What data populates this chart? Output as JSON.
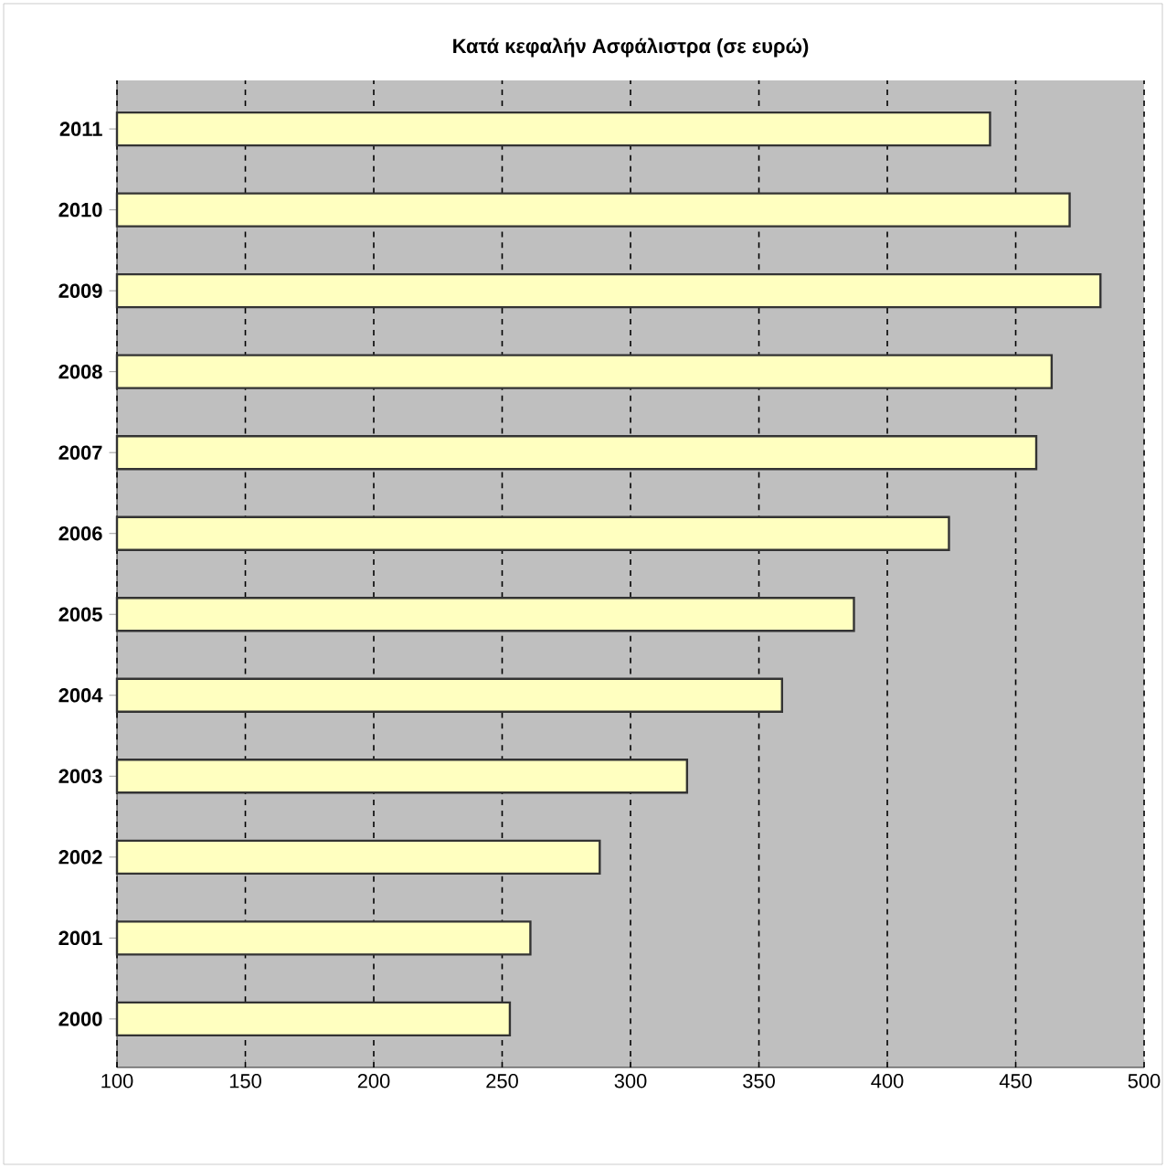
{
  "chart_data": {
    "type": "bar",
    "orientation": "horizontal",
    "title": "Κατά κεφαλήν Ασφάλιστρα (σε ευρώ)",
    "categories": [
      "2011",
      "2010",
      "2009",
      "2008",
      "2007",
      "2006",
      "2005",
      "2004",
      "2003",
      "2002",
      "2001",
      "2000"
    ],
    "values": [
      440,
      471,
      483,
      464,
      458,
      424,
      387,
      359,
      322,
      288,
      261,
      253
    ],
    "color": "#ffffc0",
    "xlim": [
      100,
      500
    ],
    "xticks": [
      100,
      150,
      200,
      250,
      300,
      350,
      400,
      450,
      500
    ],
    "grid": "x"
  }
}
